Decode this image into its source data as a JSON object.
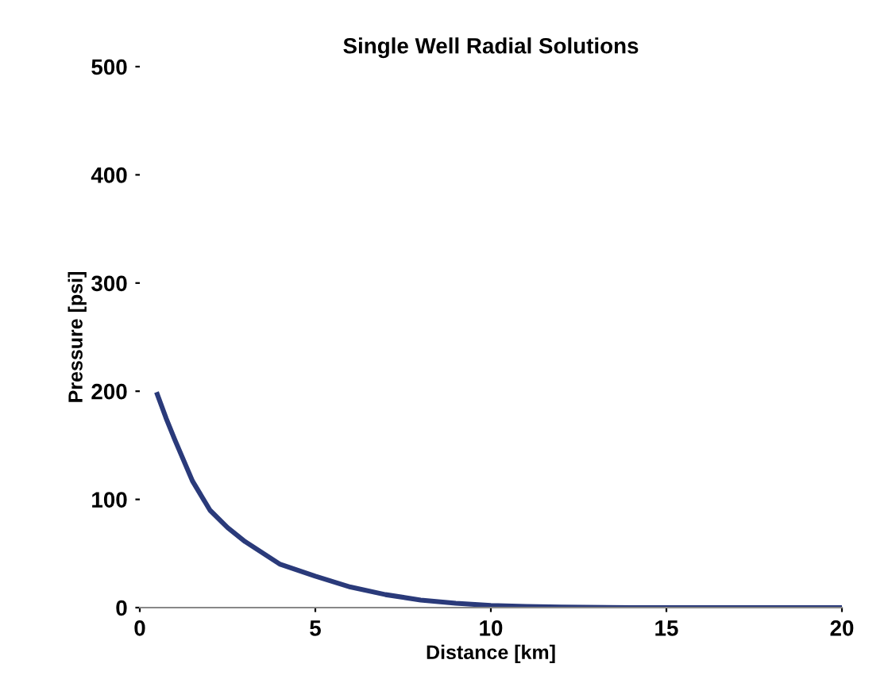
{
  "chart_data": {
    "type": "line",
    "title": "Single Well Radial Solutions",
    "xlabel": "Distance [km]",
    "ylabel": "Pressure [psi]",
    "x": [
      0.5,
      0.75,
      1,
      1.5,
      2,
      2.5,
      3,
      4,
      5,
      6,
      7,
      8,
      9,
      10,
      11,
      12,
      14,
      16,
      18,
      20
    ],
    "series": [
      {
        "color": "#2a3a7a",
        "values": [
          197,
          175,
          155,
          117,
          90,
          74,
          61,
          40,
          29,
          19,
          12,
          7,
          4,
          2,
          1,
          0.5,
          0,
          0,
          0,
          0
        ]
      }
    ],
    "xlim": [
      0,
      20
    ],
    "ylim": [
      0,
      500
    ],
    "xticks": [
      0,
      5,
      10,
      15,
      20
    ],
    "yticks": [
      0,
      100,
      200,
      300,
      400,
      500
    ],
    "grid": false,
    "legend": false,
    "marker": "none",
    "line_style": "solid"
  }
}
